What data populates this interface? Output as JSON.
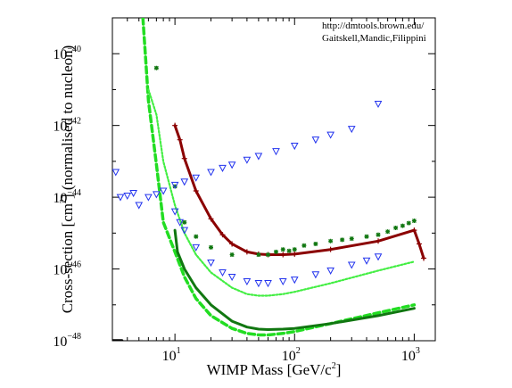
{
  "credit": {
    "line1": "http://dmtools.brown.edu/",
    "line2": "Gaitskell,Mandic,Filippini"
  },
  "chart_data": {
    "type": "line",
    "title": "",
    "xlabel": {
      "main": "WIMP Mass [GeV/c",
      "sup": "2",
      "tail": "]"
    },
    "ylabel": {
      "main": "Cross-section [cm",
      "sup": "2",
      "tail": "] (normalised to nucleon)"
    },
    "x_scale": "log",
    "y_scale": "log",
    "xlim": [
      3,
      1500
    ],
    "ylim": [
      1e-48,
      1e-39
    ],
    "x_ticks": [
      {
        "value": 10,
        "base": "10",
        "exp": "1"
      },
      {
        "value": 100,
        "base": "10",
        "exp": "2"
      },
      {
        "value": 1000,
        "base": "10",
        "exp": "3"
      }
    ],
    "y_ticks": [
      {
        "value": 1e-48,
        "base": "10",
        "exp": "−48"
      },
      {
        "value": 1e-46,
        "base": "10",
        "exp": "−46"
      },
      {
        "value": 1e-44,
        "base": "10",
        "exp": "−44"
      },
      {
        "value": 1e-42,
        "base": "10",
        "exp": "−42"
      },
      {
        "value": 1e-40,
        "base": "10",
        "exp": "−40"
      }
    ],
    "grid": false,
    "legend": "none",
    "series": [
      {
        "style": "dashed",
        "color": "#22dd22",
        "width": 3.5,
        "marker": "none",
        "x": [
          5.4,
          6,
          7,
          8,
          10,
          12,
          15,
          20,
          30,
          40,
          50,
          60,
          80,
          100,
          200,
          500,
          1000
        ],
        "y": [
          1e-39,
          5e-42,
          8e-44,
          2e-45,
          3e-46,
          6e-47,
          1.5e-47,
          5e-48,
          2.2e-48,
          1.6e-48,
          1.45e-48,
          1.45e-48,
          1.6e-48,
          1.8e-48,
          3e-48,
          6e-48,
          1e-47
        ]
      },
      {
        "style": "solid",
        "color": "#117711",
        "width": 3,
        "marker": "none",
        "x": [
          10,
          10.5,
          12,
          15,
          20,
          30,
          40,
          50,
          60,
          80,
          100,
          200,
          500,
          1000
        ],
        "y": [
          1.2e-45,
          3e-46,
          1e-46,
          3e-47,
          1e-47,
          3.5e-48,
          2.4e-48,
          2.1e-48,
          2.05e-48,
          2.1e-48,
          2.2e-48,
          3e-48,
          5e-48,
          8e-48
        ]
      },
      {
        "style": "dotted",
        "color": "#44ee44",
        "width": 2.2,
        "marker": "none",
        "x": [
          6,
          7,
          8,
          10,
          12,
          15,
          20,
          30,
          40,
          50,
          60,
          80,
          100,
          200,
          500,
          1000
        ],
        "y": [
          1e-41,
          2e-42,
          1e-43,
          6e-45,
          1e-45,
          2.5e-46,
          8e-47,
          3e-47,
          2e-47,
          1.8e-47,
          1.8e-47,
          2e-47,
          2.3e-47,
          4e-47,
          9e-47,
          1.6e-46
        ]
      },
      {
        "style": "solid",
        "color": "#8b0000",
        "width": 3,
        "marker": "plus",
        "x": [
          10,
          11,
          12,
          15,
          20,
          25,
          30,
          40,
          50,
          60,
          80,
          100,
          200,
          500,
          1000,
          1100,
          1200
        ],
        "y": [
          1e-42,
          4e-43,
          1.2e-43,
          1.5e-44,
          2.5e-45,
          9e-46,
          5e-46,
          3e-46,
          2.6e-46,
          2.5e-46,
          2.5e-46,
          2.6e-46,
          3.5e-46,
          6e-46,
          1.2e-45,
          5e-46,
          2e-46
        ]
      },
      {
        "style": "markers",
        "color": "#117711",
        "width": 0,
        "marker": "asterisk",
        "x": [
          7,
          10,
          12,
          15,
          20,
          30,
          50,
          60,
          70,
          80,
          90,
          100,
          120,
          150,
          200,
          250,
          300,
          400,
          500,
          600,
          700,
          800,
          900,
          1000
        ],
        "y": [
          4e-41,
          2e-44,
          2e-45,
          8e-46,
          4e-46,
          2.5e-46,
          2.5e-46,
          2.5e-46,
          3e-46,
          3.5e-46,
          3.2e-46,
          3.5e-46,
          4.5e-46,
          5e-46,
          6e-46,
          6.5e-46,
          7e-46,
          8e-46,
          9e-46,
          1.1e-45,
          1.4e-45,
          1.6e-45,
          1.9e-45,
          2.2e-45
        ]
      },
      {
        "style": "markers",
        "color": "#2233ee",
        "width": 0,
        "marker": "triangle-down",
        "x": [
          3.2,
          3.5,
          4,
          4.5,
          5,
          6,
          7,
          8,
          10,
          12,
          15,
          20,
          25,
          30,
          40,
          50,
          70,
          100,
          150,
          200,
          300,
          500
        ],
        "y": [
          5e-44,
          1e-44,
          1.1e-44,
          1.3e-44,
          6e-45,
          1e-44,
          1.2e-44,
          1.5e-44,
          2.2e-44,
          2.7e-44,
          3.5e-44,
          5e-44,
          6.5e-44,
          8e-44,
          1.1e-43,
          1.4e-43,
          1.9e-43,
          2.7e-43,
          4e-43,
          5.5e-43,
          8e-43,
          4e-42
        ]
      },
      {
        "style": "markers",
        "color": "#2233ee",
        "width": 0,
        "marker": "triangle-down",
        "x": [
          10,
          11,
          12,
          15,
          20,
          25,
          30,
          40,
          50,
          60,
          80,
          100,
          150,
          200,
          300,
          400,
          500
        ],
        "y": [
          4e-45,
          2e-45,
          1.2e-45,
          4e-46,
          1.5e-46,
          8e-47,
          6e-47,
          4.5e-47,
          4e-47,
          4e-47,
          4.5e-47,
          5e-47,
          7e-47,
          9e-47,
          1.3e-46,
          1.7e-46,
          2.2e-46
        ]
      },
      {
        "style": "solid",
        "color": "#000000",
        "width": 3.5,
        "marker": "none",
        "x": [
          3,
          3.6
        ],
        "y": [
          1e-48,
          1e-48
        ]
      }
    ]
  }
}
